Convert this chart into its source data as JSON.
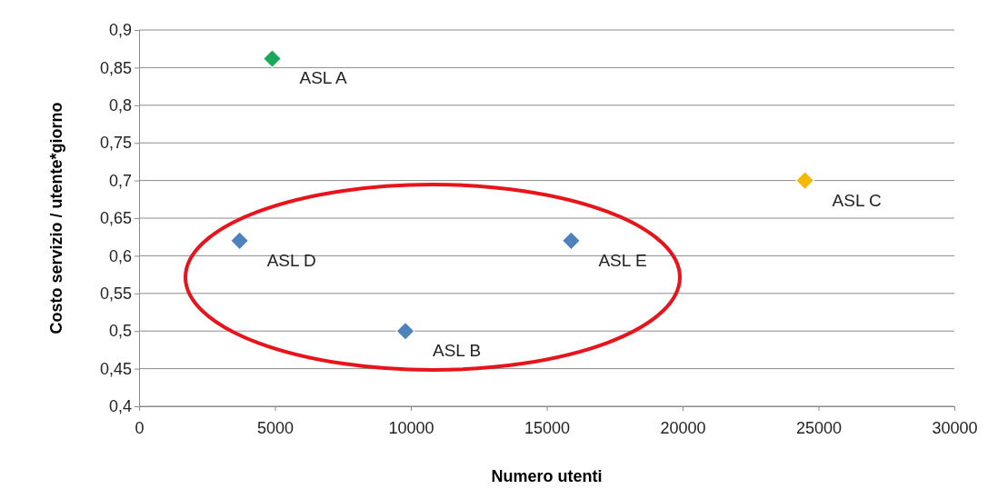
{
  "chart_data": {
    "type": "scatter",
    "xlabel": "Numero utenti",
    "ylabel": "Costo servizio / utente*giorno",
    "x": [
      4900,
      3700,
      9800,
      15900,
      24500
    ],
    "values": [
      0.862,
      0.62,
      0.5,
      0.62,
      0.7
    ],
    "colors": [
      "#1aa85a",
      "#4f81bd",
      "#4f81bd",
      "#4f81bd",
      "#f5b800"
    ],
    "marker": "diamond",
    "grid": "y",
    "xlim": [
      0,
      30000
    ],
    "xticks": [
      0,
      5000,
      10000,
      15000,
      20000,
      25000,
      30000
    ],
    "ylim": [
      0.4,
      0.9
    ],
    "yticks": [
      {
        "value": 0.4,
        "label": "0,4"
      },
      {
        "value": 0.45,
        "label": "0,45"
      },
      {
        "value": 0.5,
        "label": "0,5"
      },
      {
        "value": 0.55,
        "label": "0,55"
      },
      {
        "value": 0.6,
        "label": "0,6"
      },
      {
        "value": 0.65,
        "label": "0,65"
      },
      {
        "value": 0.7,
        "label": "0,7"
      },
      {
        "value": 0.75,
        "label": "0,75"
      },
      {
        "value": 0.8,
        "label": "0,8"
      },
      {
        "value": 0.85,
        "label": "0,85"
      },
      {
        "value": 0.9,
        "label": "0,9"
      }
    ],
    "annotations": [
      {
        "text": "ASL A",
        "x": 4900,
        "y": 0.862
      },
      {
        "text": "ASL D",
        "x": 3700,
        "y": 0.62
      },
      {
        "text": "ASL B",
        "x": 9800,
        "y": 0.5
      },
      {
        "text": "ASL E",
        "x": 15900,
        "y": 0.62
      },
      {
        "text": "ASL C",
        "x": 24500,
        "y": 0.7
      }
    ]
  }
}
